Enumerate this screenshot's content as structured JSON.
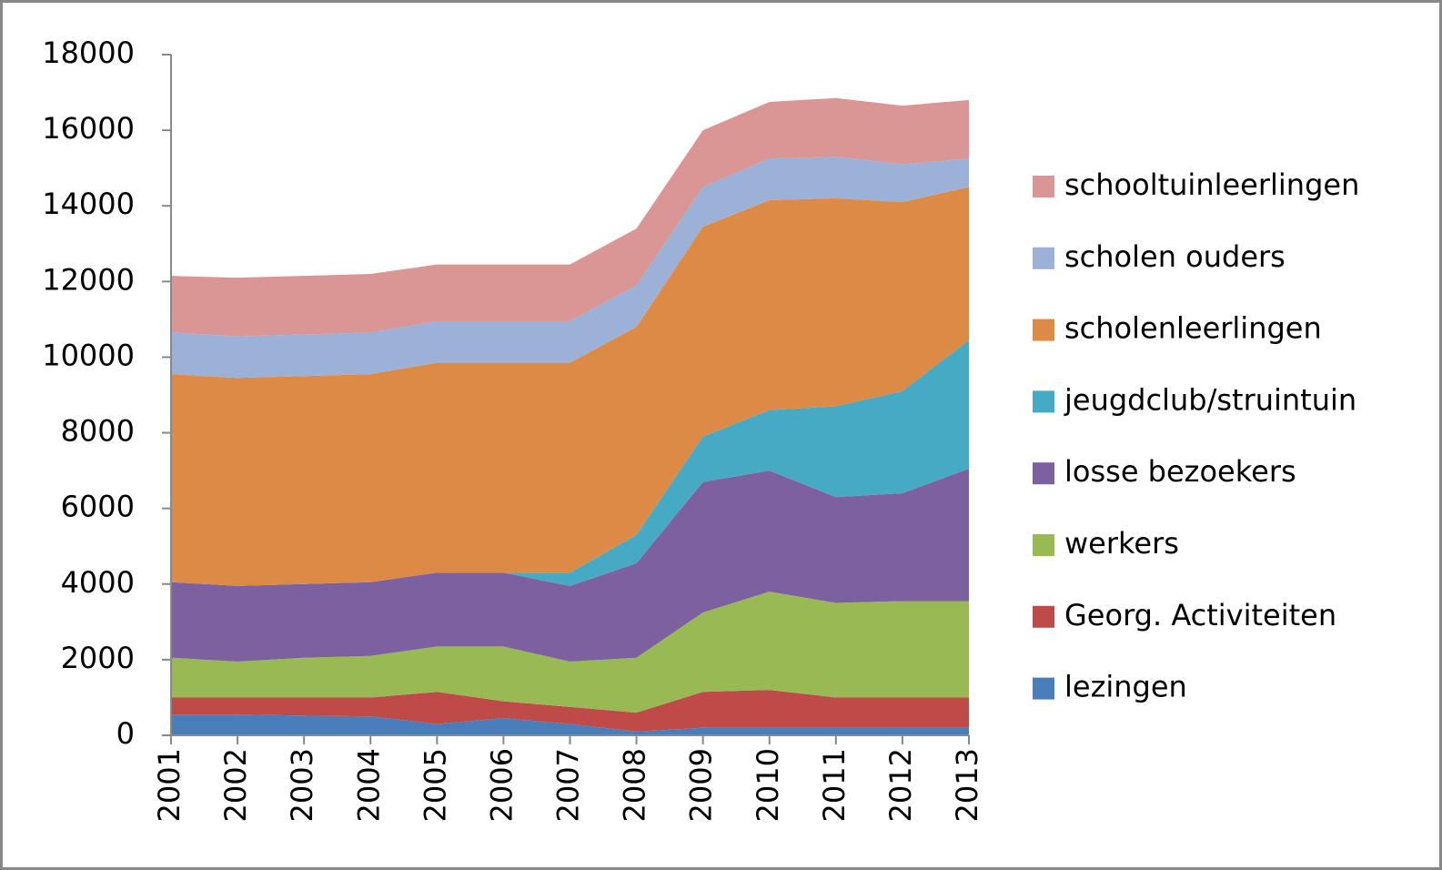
{
  "chart_data": {
    "type": "stacked_area",
    "categories": [
      "2001",
      "2002",
      "2003",
      "2004",
      "2005",
      "2006",
      "2007",
      "2008",
      "2009",
      "2010",
      "2011",
      "2012",
      "2013"
    ],
    "series": [
      {
        "name": "lezingen",
        "color": "#4a7ebb",
        "values": [
          550,
          550,
          520,
          500,
          300,
          450,
          300,
          100,
          200,
          200,
          200,
          200,
          200
        ]
      },
      {
        "name": "Georg. Activiteiten",
        "color": "#be4b48",
        "values": [
          450,
          450,
          480,
          500,
          850,
          450,
          450,
          500,
          950,
          1000,
          800,
          800,
          800
        ]
      },
      {
        "name": "werkers",
        "color": "#98b954",
        "values": [
          1050,
          950,
          1050,
          1100,
          1200,
          1450,
          1200,
          1450,
          2100,
          2600,
          2500,
          2550,
          2550
        ]
      },
      {
        "name": "losse bezoekers",
        "color": "#7d60a0",
        "values": [
          2000,
          2000,
          1950,
          1950,
          1950,
          1950,
          2000,
          2500,
          3450,
          3200,
          2800,
          2850,
          3500
        ]
      },
      {
        "name": "jeugdclub/struintuin",
        "color": "#46aac5",
        "values": [
          0,
          0,
          0,
          0,
          0,
          0,
          350,
          750,
          1200,
          1600,
          2400,
          2700,
          3400
        ]
      },
      {
        "name": "scholenleerlingen",
        "color": "#dc8a45",
        "values": [
          5500,
          5500,
          5500,
          5500,
          5550,
          5550,
          5550,
          5500,
          5550,
          5550,
          5500,
          5000,
          4050
        ]
      },
      {
        "name": "scholen ouders",
        "color": "#9bb1d8",
        "values": [
          1100,
          1100,
          1100,
          1100,
          1100,
          1100,
          1100,
          1100,
          1050,
          1100,
          1100,
          1000,
          750
        ]
      },
      {
        "name": "schooltuinleerlingen",
        "color": "#d99694",
        "values": [
          1500,
          1550,
          1550,
          1550,
          1500,
          1500,
          1500,
          1500,
          1500,
          1500,
          1550,
          1550,
          1550
        ]
      }
    ],
    "ylim": [
      0,
      18000
    ],
    "yticks": [
      0,
      2000,
      4000,
      6000,
      8000,
      10000,
      12000,
      14000,
      16000,
      18000
    ],
    "grid": false,
    "legend": "right"
  }
}
